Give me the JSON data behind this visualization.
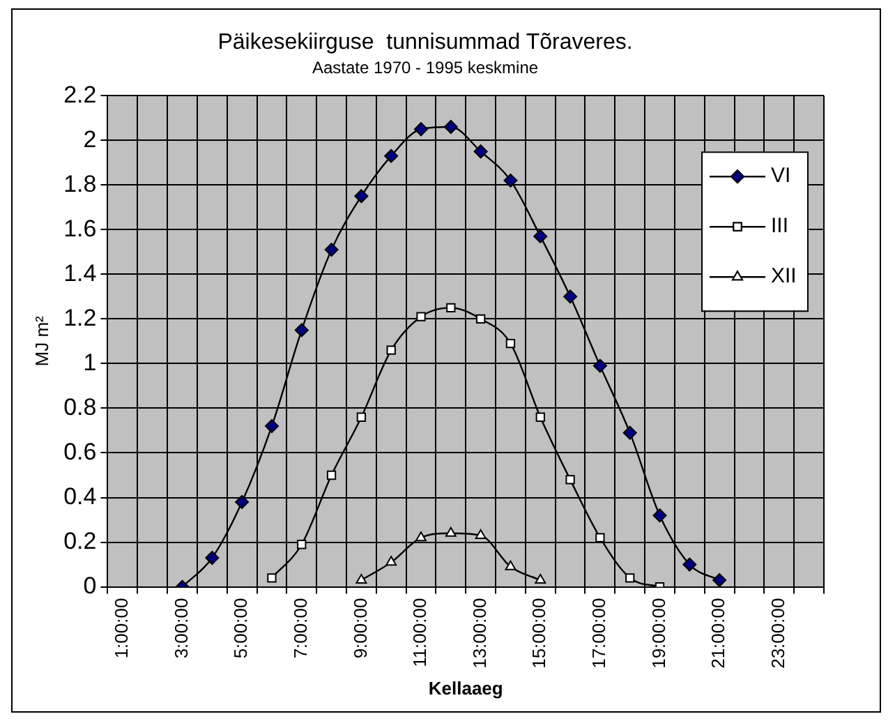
{
  "chart_data": {
    "type": "line",
    "title": "Päikesekiirguse  tunnisummad Tõraveres.",
    "subtitle": "Aastate 1970 - 1995 keskmine",
    "xlabel": "Kellaaeg",
    "ylabel": "MJ m²",
    "categories": [
      "1:00:00",
      null,
      "3:00:00",
      null,
      "5:00:00",
      null,
      "7:00:00",
      null,
      "9:00:00",
      null,
      "11:00:00",
      null,
      "13:00:00",
      null,
      "15:00:00",
      null,
      "17:00:00",
      null,
      "19:00:00",
      null,
      "21:00:00",
      null,
      "23:00:00",
      null
    ],
    "series": [
      {
        "name": "VI",
        "color": "#000080",
        "marker": "diamond",
        "values": [
          null,
          null,
          0,
          0.13,
          0.38,
          0.72,
          1.15,
          1.51,
          1.75,
          1.93,
          2.05,
          2.06,
          1.95,
          1.82,
          1.57,
          1.3,
          0.99,
          0.69,
          0.32,
          0.1,
          0.03,
          null,
          null,
          null
        ]
      },
      {
        "name": "III",
        "color": "#ffffff",
        "marker": "square",
        "values": [
          null,
          null,
          null,
          null,
          null,
          0.04,
          0.19,
          0.5,
          0.76,
          1.06,
          1.21,
          1.25,
          1.2,
          1.09,
          0.76,
          0.48,
          0.22,
          0.04,
          0,
          null,
          null,
          null,
          null,
          null
        ]
      },
      {
        "name": "XII",
        "color": "#ffffff",
        "marker": "triangle",
        "values": [
          null,
          null,
          null,
          null,
          null,
          null,
          null,
          null,
          0.03,
          0.11,
          0.22,
          0.24,
          0.23,
          0.09,
          0.03,
          null,
          null,
          null,
          null,
          null,
          null,
          null,
          null,
          null
        ]
      }
    ],
    "ylim": [
      0,
      2.2
    ],
    "yticks": [
      0,
      0.2,
      0.4,
      0.6,
      0.8,
      1,
      1.2,
      1.4,
      1.6,
      1.8,
      2,
      2.2
    ],
    "grid": true,
    "legend": "top right"
  }
}
